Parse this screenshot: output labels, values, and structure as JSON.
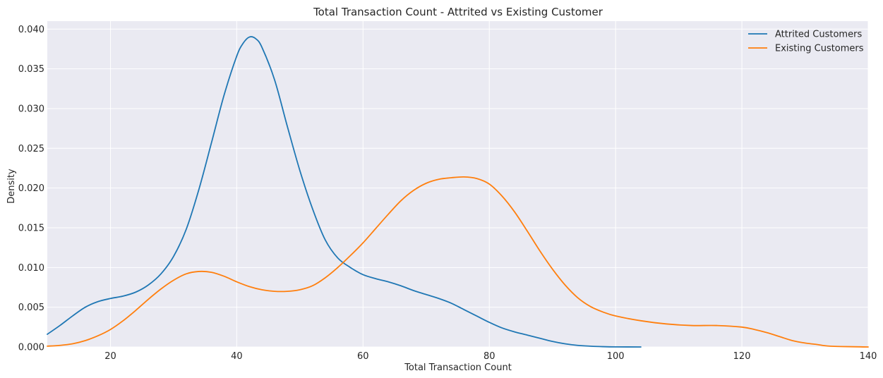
{
  "chart_data": {
    "type": "line",
    "title": "Total Transaction Count - Attrited vs Existing Customer",
    "xlabel": "Total Transaction Count",
    "ylabel": "Density",
    "xlim": [
      10,
      140
    ],
    "ylim": [
      0,
      0.041
    ],
    "x_ticks": [
      20,
      40,
      60,
      80,
      100,
      120,
      140
    ],
    "y_ticks": [
      0.0,
      0.005,
      0.01,
      0.015,
      0.02,
      0.025,
      0.03,
      0.035,
      0.04
    ],
    "x_tick_labels": [
      "20",
      "40",
      "60",
      "80",
      "100",
      "120",
      "140"
    ],
    "y_tick_labels": [
      "0.000",
      "0.005",
      "0.010",
      "0.015",
      "0.020",
      "0.025",
      "0.030",
      "0.035",
      "0.040"
    ],
    "grid": true,
    "legend_position": "top-right",
    "background_color": "#eaeaf2",
    "grid_color": "#ffffff",
    "series": [
      {
        "name": "Attrited Customers",
        "color": "#1f77b4",
        "points": [
          [
            10,
            0.0016
          ],
          [
            12,
            0.0027
          ],
          [
            14,
            0.0039
          ],
          [
            16,
            0.005
          ],
          [
            18,
            0.0057
          ],
          [
            20,
            0.0061
          ],
          [
            22,
            0.0064
          ],
          [
            24,
            0.0069
          ],
          [
            26,
            0.0078
          ],
          [
            28,
            0.0092
          ],
          [
            30,
            0.0114
          ],
          [
            32,
            0.0148
          ],
          [
            34,
            0.0198
          ],
          [
            36,
            0.0257
          ],
          [
            38,
            0.0317
          ],
          [
            40,
            0.0366
          ],
          [
            41,
            0.0382
          ],
          [
            42,
            0.039
          ],
          [
            43,
            0.0388
          ],
          [
            44,
            0.0377
          ],
          [
            46,
            0.0336
          ],
          [
            48,
            0.0278
          ],
          [
            50,
            0.0222
          ],
          [
            52,
            0.0174
          ],
          [
            54,
            0.0135
          ],
          [
            56,
            0.0112
          ],
          [
            58,
            0.01
          ],
          [
            60,
            0.0091
          ],
          [
            62,
            0.0086
          ],
          [
            64,
            0.0082
          ],
          [
            66,
            0.0077
          ],
          [
            68,
            0.0071
          ],
          [
            70,
            0.0066
          ],
          [
            72,
            0.0061
          ],
          [
            74,
            0.0055
          ],
          [
            76,
            0.0047
          ],
          [
            78,
            0.0039
          ],
          [
            80,
            0.0031
          ],
          [
            82,
            0.0024
          ],
          [
            84,
            0.0019
          ],
          [
            86,
            0.0015
          ],
          [
            88,
            0.0011
          ],
          [
            90,
            0.0007
          ],
          [
            92,
            0.0004
          ],
          [
            94,
            0.0002
          ],
          [
            96,
            0.0001
          ],
          [
            98,
            4e-05
          ],
          [
            100,
            1e-05
          ],
          [
            104,
            0.0
          ]
        ]
      },
      {
        "name": "Existing Customers",
        "color": "#ff7f0e",
        "points": [
          [
            10,
            0.0001
          ],
          [
            12,
            0.0002
          ],
          [
            14,
            0.0004
          ],
          [
            16,
            0.0008
          ],
          [
            18,
            0.0014
          ],
          [
            20,
            0.0022
          ],
          [
            22,
            0.0033
          ],
          [
            24,
            0.0046
          ],
          [
            26,
            0.006
          ],
          [
            28,
            0.0073
          ],
          [
            30,
            0.0084
          ],
          [
            32,
            0.0092
          ],
          [
            34,
            0.0095
          ],
          [
            36,
            0.0094
          ],
          [
            38,
            0.0089
          ],
          [
            40,
            0.0082
          ],
          [
            42,
            0.0076
          ],
          [
            44,
            0.0072
          ],
          [
            46,
            0.007
          ],
          [
            48,
            0.007
          ],
          [
            50,
            0.0072
          ],
          [
            52,
            0.0077
          ],
          [
            54,
            0.0087
          ],
          [
            56,
            0.01
          ],
          [
            58,
            0.0115
          ],
          [
            60,
            0.0131
          ],
          [
            62,
            0.0149
          ],
          [
            64,
            0.0167
          ],
          [
            66,
            0.0184
          ],
          [
            68,
            0.0197
          ],
          [
            70,
            0.0206
          ],
          [
            72,
            0.0211
          ],
          [
            74,
            0.0213
          ],
          [
            76,
            0.0214
          ],
          [
            78,
            0.0212
          ],
          [
            80,
            0.0205
          ],
          [
            82,
            0.019
          ],
          [
            84,
            0.017
          ],
          [
            86,
            0.0146
          ],
          [
            88,
            0.0121
          ],
          [
            90,
            0.0098
          ],
          [
            92,
            0.0078
          ],
          [
            94,
            0.0062
          ],
          [
            96,
            0.0051
          ],
          [
            98,
            0.0044
          ],
          [
            100,
            0.0039
          ],
          [
            104,
            0.0033
          ],
          [
            108,
            0.0029
          ],
          [
            112,
            0.0027
          ],
          [
            116,
            0.0027
          ],
          [
            120,
            0.0025
          ],
          [
            122,
            0.0022
          ],
          [
            124,
            0.0018
          ],
          [
            126,
            0.0013
          ],
          [
            128,
            0.0008
          ],
          [
            130,
            0.0005
          ],
          [
            132,
            0.0003
          ],
          [
            134,
            0.0001
          ],
          [
            140,
            0.0
          ]
        ]
      }
    ]
  }
}
